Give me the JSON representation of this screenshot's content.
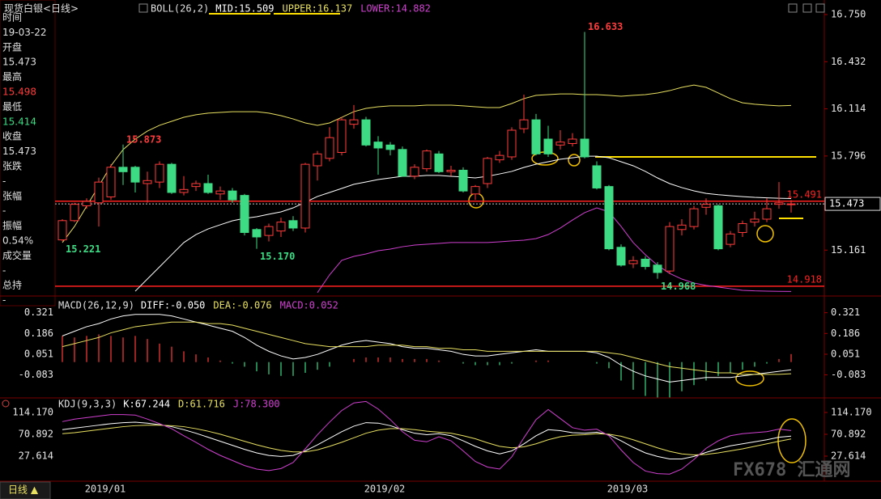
{
  "instrument": "现货白银<日线>",
  "sidebar": [
    {
      "label": "时间",
      "value": "19-03-22",
      "color": "#e0e0e0"
    },
    {
      "label": "开盘",
      "value": "15.473",
      "color": "#e0e0e0"
    },
    {
      "label": "最高",
      "value": "15.498",
      "color": "#ff3b3b"
    },
    {
      "label": "最低",
      "value": "15.414",
      "color": "#3ddc84"
    },
    {
      "label": "收盘",
      "value": "15.473",
      "color": "#e0e0e0"
    },
    {
      "label": "张跌",
      "value": "-",
      "color": "#e0e0e0"
    },
    {
      "label": "张幅",
      "value": "-",
      "color": "#e0e0e0"
    },
    {
      "label": "振幅",
      "value": "0.54%",
      "color": "#e0e0e0"
    },
    {
      "label": "成交量",
      "value": "-",
      "color": "#e0e0e0"
    },
    {
      "label": "总持",
      "value": "-",
      "color": "#e0e0e0"
    }
  ],
  "period_button": "日线 ▲",
  "watermark": "FX678 汇通网",
  "chart_data": [
    {
      "type": "candlestick",
      "title": "BOLL(26,2)",
      "categories": [
        null,
        null,
        null,
        "2019/01",
        null,
        null,
        null,
        null,
        null,
        null,
        null,
        null,
        null,
        null,
        null,
        null,
        null,
        null,
        null,
        null,
        null,
        null,
        null,
        null,
        null,
        null,
        "2019/02",
        null,
        null,
        null,
        null,
        null,
        null,
        null,
        null,
        null,
        null,
        null,
        null,
        null,
        null,
        null,
        null,
        null,
        null,
        null,
        "2019/03",
        null,
        null,
        null,
        null,
        null,
        null,
        null,
        null,
        null,
        null,
        null,
        null,
        null,
        null
      ],
      "open": [
        15.23,
        15.36,
        15.46,
        15.48,
        15.52,
        15.72,
        15.72,
        15.61,
        15.62,
        15.74,
        15.55,
        15.59,
        15.61,
        15.54,
        15.56,
        15.53,
        15.3,
        15.26,
        15.29,
        15.36,
        15.31,
        15.73,
        15.78,
        15.82,
        16.01,
        16.04,
        15.89,
        15.87,
        15.84,
        15.66,
        15.71,
        15.81,
        15.69,
        15.7,
        15.54,
        15.61,
        15.77,
        15.79,
        15.98,
        16.04,
        15.91,
        15.87,
        15.88,
        15.91,
        15.73,
        15.59,
        15.18,
        15.07,
        15.1,
        15.06,
        15.02,
        15.3,
        15.32,
        15.45,
        15.46,
        15.2,
        15.28,
        15.35,
        15.37,
        15.47,
        15.473
      ],
      "high": [
        15.37,
        15.48,
        15.51,
        15.65,
        15.74,
        15.873,
        15.73,
        15.69,
        15.76,
        15.75,
        15.66,
        15.63,
        15.67,
        15.59,
        15.58,
        15.54,
        15.31,
        15.34,
        15.38,
        15.39,
        15.75,
        15.83,
        15.99,
        16.06,
        16.14,
        16.06,
        15.93,
        15.89,
        15.86,
        15.74,
        15.84,
        15.83,
        15.73,
        15.72,
        15.6,
        15.79,
        15.83,
        15.99,
        16.21,
        16.08,
        16.0,
        15.97,
        15.95,
        16.633,
        15.76,
        15.6,
        15.2,
        15.12,
        15.12,
        15.08,
        15.35,
        15.37,
        15.46,
        15.51,
        15.47,
        15.29,
        15.36,
        15.42,
        15.51,
        15.62,
        15.498
      ],
      "low": [
        15.221,
        15.35,
        15.44,
        15.32,
        15.5,
        15.6,
        15.55,
        15.48,
        15.58,
        15.54,
        15.53,
        15.56,
        15.54,
        15.5,
        15.48,
        15.26,
        15.17,
        15.22,
        15.25,
        15.29,
        15.28,
        15.63,
        15.76,
        15.8,
        15.98,
        15.86,
        15.67,
        15.8,
        15.66,
        15.64,
        15.69,
        15.68,
        15.66,
        15.55,
        15.5,
        15.58,
        15.75,
        15.77,
        15.95,
        15.8,
        15.79,
        15.84,
        15.86,
        15.78,
        15.57,
        15.16,
        15.05,
        15.04,
        15.03,
        14.968,
        15.0,
        15.26,
        15.3,
        15.4,
        15.16,
        15.18,
        15.25,
        15.32,
        15.35,
        15.44,
        15.414
      ],
      "close": [
        15.36,
        15.47,
        15.49,
        15.62,
        15.72,
        15.69,
        15.62,
        15.63,
        15.74,
        15.55,
        15.57,
        15.61,
        15.55,
        15.56,
        15.5,
        15.28,
        15.25,
        15.32,
        15.35,
        15.31,
        15.74,
        15.81,
        15.92,
        16.04,
        16.04,
        15.87,
        15.85,
        15.84,
        15.66,
        15.72,
        15.83,
        15.69,
        15.7,
        15.56,
        15.59,
        15.78,
        15.8,
        15.97,
        16.04,
        15.81,
        15.81,
        15.89,
        15.91,
        15.79,
        15.58,
        15.17,
        15.06,
        15.09,
        15.05,
        15.01,
        15.32,
        15.33,
        15.44,
        15.47,
        15.17,
        15.27,
        15.34,
        15.37,
        15.44,
        15.48,
        15.473
      ],
      "up_color": "#ff3b3b",
      "down_color": "#3ddc84",
      "series": [
        {
          "name": "MID:15.509",
          "color": "#ffffff",
          "values": [
            null,
            null,
            null,
            null,
            null,
            null,
            14.884,
            14.966,
            15.048,
            15.13,
            15.212,
            15.266,
            15.304,
            15.332,
            15.359,
            15.375,
            15.386,
            15.403,
            15.419,
            15.446,
            15.484,
            15.523,
            15.55,
            15.577,
            15.605,
            15.621,
            15.637,
            15.648,
            15.659,
            15.659,
            15.665,
            15.665,
            15.659,
            15.654,
            15.648,
            15.659,
            15.675,
            15.692,
            15.719,
            15.741,
            15.757,
            15.774,
            15.784,
            15.795,
            15.795,
            15.784,
            15.757,
            15.73,
            15.692,
            15.648,
            15.61,
            15.583,
            15.561,
            15.544,
            15.535,
            15.528,
            15.522,
            15.517,
            15.514,
            15.511,
            15.509
          ]
        },
        {
          "name": "UPPER:16.137",
          "color": "#e8e060",
          "values": [
            15.212,
            15.321,
            15.457,
            15.594,
            15.73,
            15.839,
            15.91,
            15.964,
            16.003,
            16.03,
            16.057,
            16.074,
            16.085,
            16.09,
            16.095,
            16.095,
            16.095,
            16.085,
            16.068,
            16.046,
            16.019,
            16.003,
            16.019,
            16.057,
            16.095,
            16.117,
            16.128,
            16.134,
            16.134,
            16.134,
            16.139,
            16.139,
            16.139,
            16.134,
            16.128,
            16.123,
            16.123,
            16.15,
            16.183,
            16.205,
            16.21,
            16.215,
            16.215,
            16.21,
            16.21,
            16.205,
            16.199,
            16.205,
            16.21,
            16.221,
            16.237,
            16.259,
            16.275,
            16.259,
            16.221,
            16.183,
            16.155,
            16.145,
            16.139,
            16.134,
            16.137
          ]
        },
        {
          "name": "LOWER:14.882",
          "color": "#d040d0",
          "values": [
            null,
            null,
            null,
            null,
            null,
            null,
            null,
            null,
            null,
            null,
            null,
            null,
            null,
            null,
            null,
            null,
            null,
            null,
            null,
            null,
            null,
            14.874,
            14.994,
            15.092,
            15.119,
            15.135,
            15.157,
            15.168,
            15.184,
            15.195,
            15.201,
            15.206,
            15.212,
            15.212,
            15.212,
            15.212,
            15.217,
            15.223,
            15.228,
            15.239,
            15.266,
            15.31,
            15.364,
            15.414,
            15.446,
            15.419,
            15.321,
            15.212,
            15.13,
            15.059,
            15.004,
            14.966,
            14.939,
            14.923,
            14.912,
            14.901,
            14.89,
            14.886,
            14.884,
            14.883,
            14.882
          ]
        }
      ],
      "annotations": [
        {
          "value": 15.221,
          "label": "15.221"
        },
        {
          "value": 15.873,
          "label": "15.873"
        },
        {
          "value": 15.17,
          "label": "15.170"
        },
        {
          "value": 16.633,
          "label": "16.633"
        },
        {
          "value": 14.968,
          "label": "14.968"
        }
      ],
      "levels": [
        {
          "value": 15.491,
          "label": "15.491",
          "color": "#ff2020"
        },
        {
          "value": 14.918,
          "label": "14.918",
          "color": "#ff2020"
        }
      ],
      "last_price": 15.473,
      "ylim": [
        14.857,
        16.821
      ],
      "yticks": [
        {
          "value": 16.75,
          "label": "16.750"
        },
        16.432,
        16.114,
        15.796,
        15.479,
        15.161
      ]
    },
    {
      "type": "macd",
      "title": "MACD(26,12,9)",
      "series": [
        {
          "name": "DIFF:-0.050",
          "color": "#ffffff",
          "values": [
            0.17,
            0.2,
            0.23,
            0.25,
            0.28,
            0.3,
            0.31,
            0.31,
            0.31,
            0.3,
            0.28,
            0.26,
            0.24,
            0.22,
            0.2,
            0.16,
            0.11,
            0.07,
            0.04,
            0.02,
            0.03,
            0.05,
            0.08,
            0.11,
            0.13,
            0.14,
            0.13,
            0.12,
            0.1,
            0.09,
            0.09,
            0.08,
            0.07,
            0.05,
            0.04,
            0.04,
            0.05,
            0.06,
            0.07,
            0.08,
            0.07,
            0.07,
            0.07,
            0.07,
            0.06,
            0.03,
            -0.02,
            -0.06,
            -0.09,
            -0.11,
            -0.13,
            -0.12,
            -0.11,
            -0.1,
            -0.1,
            -0.1,
            -0.09,
            -0.08,
            -0.07,
            -0.06,
            -0.05
          ]
        },
        {
          "name": "DEA:-0.076",
          "color": "#e8e060",
          "values": [
            0.1,
            0.12,
            0.14,
            0.16,
            0.19,
            0.21,
            0.23,
            0.24,
            0.25,
            0.26,
            0.26,
            0.26,
            0.25,
            0.25,
            0.24,
            0.22,
            0.2,
            0.18,
            0.16,
            0.14,
            0.12,
            0.11,
            0.1,
            0.1,
            0.1,
            0.1,
            0.11,
            0.11,
            0.11,
            0.1,
            0.1,
            0.09,
            0.09,
            0.08,
            0.08,
            0.07,
            0.07,
            0.07,
            0.07,
            0.07,
            0.07,
            0.07,
            0.07,
            0.07,
            0.07,
            0.06,
            0.05,
            0.03,
            0.01,
            -0.01,
            -0.03,
            -0.04,
            -0.05,
            -0.06,
            -0.07,
            -0.07,
            -0.08,
            -0.08,
            -0.08,
            -0.08,
            -0.076
          ]
        },
        {
          "name": "MACD:0.052",
          "color": "#d040d0",
          "values": [
            0.17,
            0.16,
            0.17,
            0.18,
            0.17,
            0.16,
            0.17,
            0.15,
            0.12,
            0.1,
            0.07,
            0.05,
            0.03,
            0.01,
            -0.01,
            -0.03,
            -0.06,
            -0.08,
            -0.09,
            -0.09,
            -0.07,
            -0.05,
            -0.03,
            0.0,
            0.02,
            0.03,
            0.03,
            0.03,
            0.02,
            0.02,
            0.02,
            0.01,
            0.0,
            -0.01,
            -0.02,
            -0.02,
            -0.02,
            -0.01,
            0.0,
            0.01,
            0.01,
            0.0,
            0.0,
            0.0,
            -0.01,
            -0.04,
            -0.12,
            -0.18,
            -0.22,
            -0.23,
            -0.23,
            -0.19,
            -0.15,
            -0.12,
            -0.09,
            -0.07,
            -0.05,
            -0.03,
            -0.01,
            0.02,
            0.052
          ]
        }
      ],
      "up_color": "#ff3b3b",
      "down_color": "#3ddc84",
      "ylim": [
        -0.233,
        0.419
      ],
      "yticks": [
        0.321,
        0.186,
        0.051,
        -0.083
      ]
    },
    {
      "type": "line",
      "title": "KDJ(9,3,3)",
      "series": [
        {
          "name": "K:67.244",
          "color": "#ffffff",
          "values": [
            80,
            83,
            86,
            89,
            92,
            94,
            95,
            93,
            90,
            86,
            80,
            73,
            65,
            57,
            49,
            41,
            34,
            29,
            27,
            29,
            38,
            50,
            63,
            76,
            87,
            94,
            93,
            88,
            80,
            73,
            70,
            72,
            68,
            58,
            47,
            38,
            32,
            38,
            52,
            68,
            80,
            78,
            74,
            73,
            75,
            70,
            58,
            45,
            34,
            27,
            22,
            22,
            27,
            35,
            42,
            48,
            52,
            56,
            60,
            65,
            67.244
          ]
        },
        {
          "name": "D:61.716",
          "color": "#e8e060",
          "values": [
            72,
            74,
            77,
            80,
            83,
            86,
            88,
            89,
            89,
            88,
            86,
            82,
            77,
            71,
            64,
            57,
            50,
            44,
            39,
            36,
            36,
            40,
            47,
            55,
            64,
            73,
            79,
            82,
            82,
            80,
            77,
            75,
            73,
            68,
            62,
            54,
            47,
            44,
            46,
            52,
            60,
            66,
            69,
            70,
            72,
            71,
            67,
            60,
            52,
            44,
            37,
            32,
            30,
            31,
            34,
            38,
            42,
            47,
            52,
            57,
            61.716
          ]
        },
        {
          "name": "J:78.300",
          "color": "#d040d0",
          "values": [
            96,
            101,
            104,
            107,
            110,
            110,
            109,
            101,
            92,
            82,
            68,
            55,
            41,
            29,
            19,
            9,
            2,
            -1,
            3,
            15,
            42,
            70,
            95,
            118,
            133,
            136,
            121,
            100,
            76,
            59,
            56,
            66,
            58,
            38,
            17,
            6,
            2,
            26,
            64,
            100,
            120,
            102,
            84,
            79,
            81,
            68,
            40,
            15,
            -2,
            -7,
            -8,
            2,
            21,
            43,
            58,
            68,
            72,
            74,
            76,
            81,
            78.3
          ]
        }
      ],
      "ylim": [
        -22.1,
        143.0
      ],
      "yticks": [
        {
          "value": 114.17,
          "label": "114.170"
        },
        70.892,
        27.614
      ]
    }
  ]
}
